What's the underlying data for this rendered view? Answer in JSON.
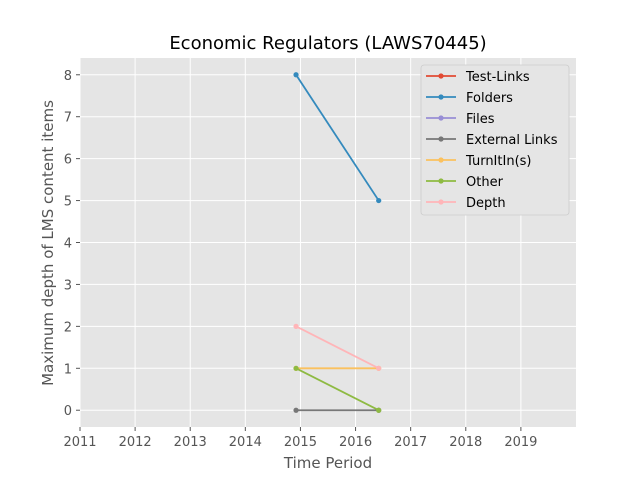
{
  "chart_data": {
    "type": "line",
    "title": "Economic Regulators (LAWS70445)",
    "xlabel": "Time Period",
    "ylabel": "Maximum depth of LMS content items",
    "xlim": [
      2011,
      2020
    ],
    "ylim": [
      -0.4,
      8.4
    ],
    "xticks": [
      "2011",
      "2012",
      "2013",
      "2014",
      "2015",
      "2016",
      "2017",
      "2018",
      "2019"
    ],
    "yticks": [
      "0",
      "1",
      "2",
      "3",
      "4",
      "5",
      "6",
      "7",
      "8"
    ],
    "grid": true,
    "legend_position": "top-right",
    "x": [
      2014.92,
      2016.42
    ],
    "series": [
      {
        "name": "Test-Links",
        "color": "#E24A33",
        "values": [
          null,
          null
        ]
      },
      {
        "name": "Folders",
        "color": "#348ABD",
        "values": [
          8,
          5
        ]
      },
      {
        "name": "Files",
        "color": "#988ED5",
        "values": [
          null,
          null
        ]
      },
      {
        "name": "External Links",
        "color": "#777777",
        "values": [
          0,
          0
        ]
      },
      {
        "name": "TurnItIn(s)",
        "color": "#FBC15E",
        "values": [
          1,
          1
        ]
      },
      {
        "name": "Other",
        "color": "#8EBA42",
        "values": [
          1,
          0
        ]
      },
      {
        "name": "Depth",
        "color": "#FFB5B8",
        "values": [
          2,
          1
        ]
      }
    ]
  }
}
